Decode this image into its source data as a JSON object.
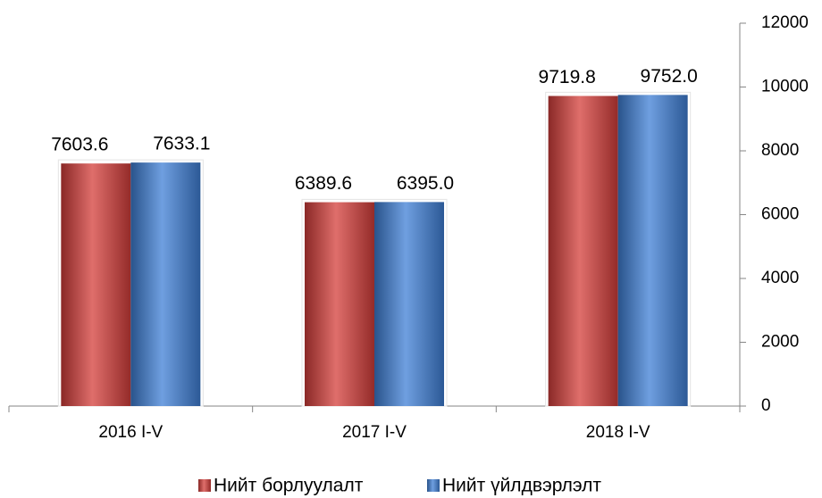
{
  "chart_data": {
    "type": "bar",
    "categories": [
      "2016 I-V",
      "2017 I-V",
      "2018 I-V"
    ],
    "series": [
      {
        "name": "Нийт борлуулалт",
        "color": "#d43d3a",
        "values": [
          7603.6,
          6389.6,
          9719.8
        ],
        "value_labels": [
          "7603.6",
          "6389.6",
          "9719.8"
        ]
      },
      {
        "name": "Нийт үйлдвэрлэлт",
        "color": "#3f7fd6",
        "values": [
          7633.1,
          6395.0,
          9752.0
        ],
        "value_labels": [
          "7633.1",
          "6395.0",
          "9752.0"
        ]
      }
    ],
    "ylim": [
      0,
      12000
    ],
    "yticks": [
      0,
      2000,
      4000,
      6000,
      8000,
      10000,
      12000
    ],
    "legend": "bottom"
  }
}
